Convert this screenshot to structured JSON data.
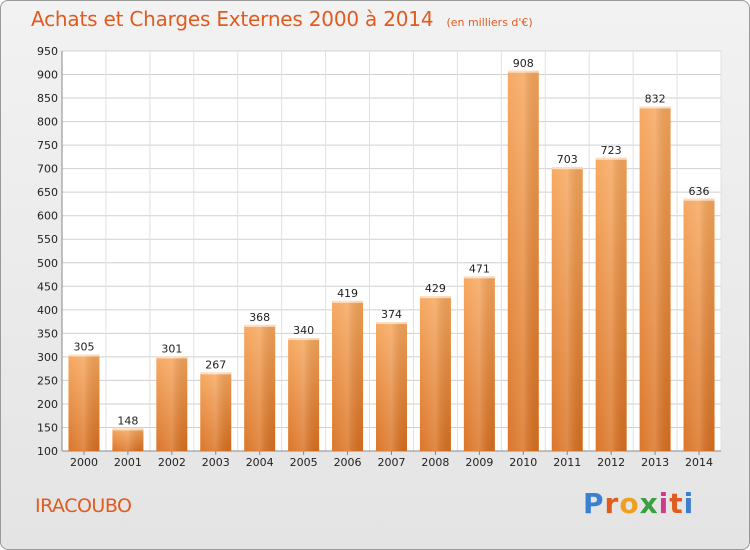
{
  "chart_data": {
    "type": "bar",
    "title": "Achats et Charges Externes 2000 à 2014",
    "subtitle": "(en milliers d'€)",
    "categories": [
      "2000",
      "2001",
      "2002",
      "2003",
      "2004",
      "2005",
      "2006",
      "2007",
      "2008",
      "2009",
      "2010",
      "2011",
      "2012",
      "2013",
      "2014"
    ],
    "values": [
      305,
      148,
      301,
      267,
      368,
      340,
      419,
      374,
      429,
      471,
      908,
      703,
      723,
      832,
      636
    ],
    "ylim": [
      100,
      950
    ],
    "yticks": [
      100,
      150,
      200,
      250,
      300,
      350,
      400,
      450,
      500,
      550,
      600,
      650,
      700,
      750,
      800,
      850,
      900,
      950
    ],
    "grid": true,
    "bar_color": "#f08a38",
    "bar_color_dark": "#d96f1f"
  },
  "commune": "IRACOUBO",
  "logo": {
    "letters": [
      "P",
      "r",
      "o",
      "x",
      "i",
      "t",
      "i"
    ],
    "colors": [
      "#3a7fd0",
      "#e15b1f",
      "#f0a020",
      "#3aa040",
      "#d03a8a",
      "#e15b1f",
      "#3a7fd0"
    ]
  }
}
